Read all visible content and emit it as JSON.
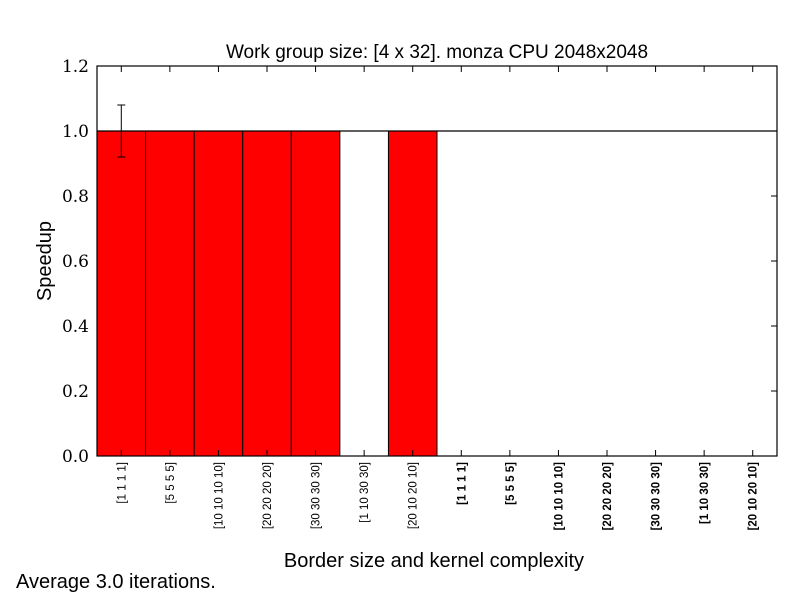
{
  "chart_data": {
    "type": "bar",
    "title": "Work group size: [4 x 32]. monza CPU 2048x2048",
    "xlabel": "Border size and kernel complexity",
    "ylabel": "Speedup",
    "ylim": [
      0,
      1.2
    ],
    "yticks": [
      "0.0",
      "0.2",
      "0.4",
      "0.6",
      "0.8",
      "1.0",
      "1.2"
    ],
    "reference_line": 1.0,
    "bar_color": "#ff0000",
    "categories": [
      {
        "label": "[1 1 1 1]",
        "bold": false
      },
      {
        "label": "[5 5 5 5]",
        "bold": false
      },
      {
        "label": "[10 10 10 10]",
        "bold": false
      },
      {
        "label": "[20 20 20 20]",
        "bold": false
      },
      {
        "label": "[30 30 30 30]",
        "bold": false
      },
      {
        "label": "[1 10 30 30]",
        "bold": false
      },
      {
        "label": "[20 10 20 10]",
        "bold": false
      },
      {
        "label": "[1 1 1 1]",
        "bold": true
      },
      {
        "label": "[5 5 5 5]",
        "bold": true
      },
      {
        "label": "[10 10 10 10]",
        "bold": true
      },
      {
        "label": "[20 20 20 20]",
        "bold": true
      },
      {
        "label": "[30 30 30 30]",
        "bold": true
      },
      {
        "label": "[1 10 30 30]",
        "bold": true
      },
      {
        "label": "[20 10 20 10]",
        "bold": true
      }
    ],
    "values": [
      1.0,
      1.0,
      1.0,
      1.0,
      1.0,
      null,
      1.0,
      null,
      null,
      null,
      null,
      null,
      null,
      null
    ],
    "errors": [
      0.08,
      0.0,
      0.0,
      0.0,
      0.0,
      null,
      0.0,
      null,
      null,
      null,
      null,
      null,
      null,
      null
    ],
    "grid": false
  },
  "footnote": "Average 3.0 iterations."
}
